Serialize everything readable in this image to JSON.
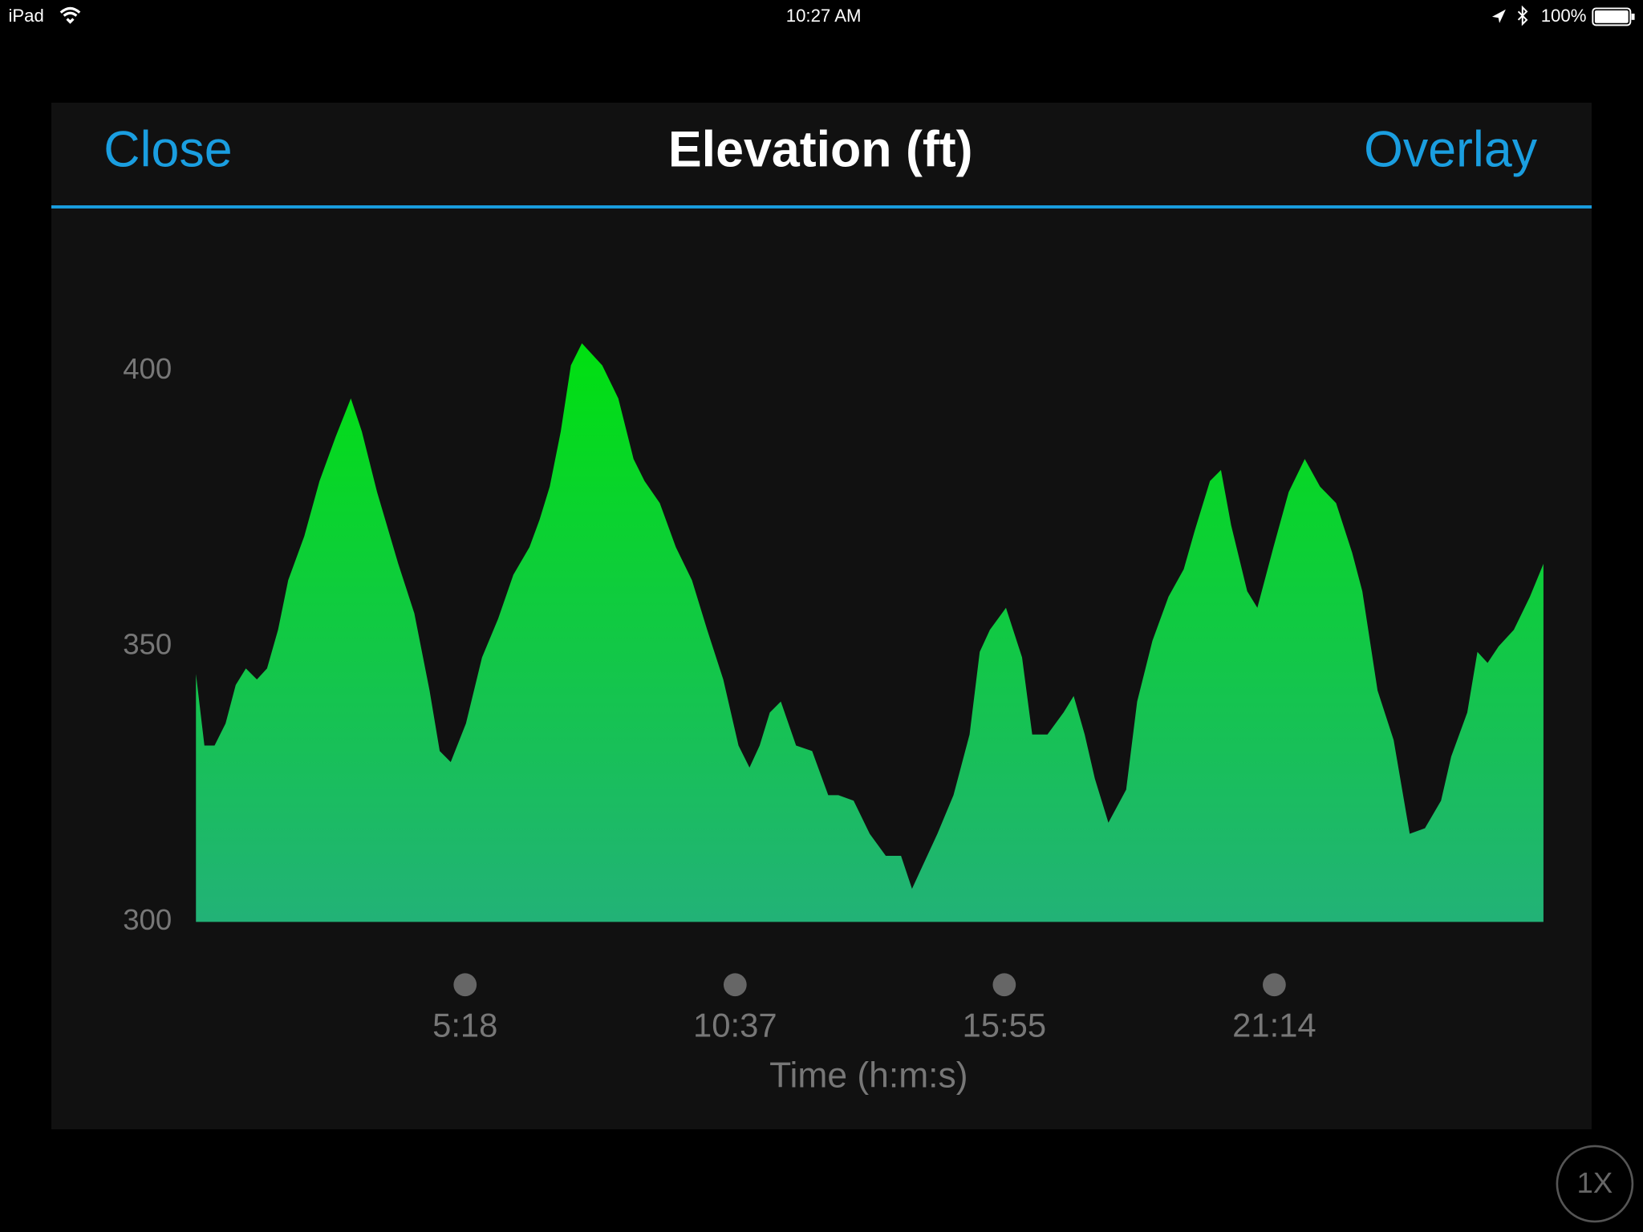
{
  "status_bar": {
    "device": "iPad",
    "time": "10:27 AM",
    "battery": "100%"
  },
  "header": {
    "close": "Close",
    "title": "Elevation (ft)",
    "overlay": "Overlay"
  },
  "chart_data": {
    "type": "area",
    "x_label": "Time (h:m:s)",
    "color": "#00e010",
    "x": [
      0,
      10,
      22,
      35,
      47,
      59,
      72,
      84,
      97,
      109,
      128,
      146,
      165,
      183,
      196,
      214,
      239,
      258,
      276,
      288,
      301,
      319,
      338,
      357,
      375,
      394,
      406,
      418,
      431,
      443,
      456,
      468,
      480,
      499,
      517,
      530,
      548,
      567,
      586,
      604,
      623,
      641,
      654,
      666,
      678,
      691,
      709,
      728,
      747,
      759,
      777,
      796,
      815,
      833,
      846,
      858,
      876,
      895,
      914,
      926,
      938,
      957,
      976,
      988,
      1006,
      1025,
      1037,
      1050,
      1062,
      1078,
      1099,
      1112,
      1130,
      1149,
      1167,
      1180,
      1198,
      1211,
      1223,
      1242,
      1254,
      1273,
      1291,
      1310,
      1328,
      1347,
      1366,
      1378,
      1396,
      1415,
      1434,
      1452,
      1471,
      1483,
      1502,
      1514,
      1526,
      1539,
      1557,
      1576,
      1592
    ],
    "values": [
      345,
      332,
      332,
      336,
      343,
      346,
      344,
      346,
      353,
      362,
      370,
      380,
      388,
      395,
      389,
      378,
      365,
      356,
      342,
      331,
      329,
      336,
      348,
      355,
      363,
      368,
      373,
      379,
      389,
      401,
      405,
      403,
      401,
      395,
      384,
      380,
      376,
      368,
      362,
      353,
      344,
      332,
      328,
      332,
      338,
      340,
      332,
      331,
      323,
      323,
      322,
      316,
      312,
      312,
      306,
      310,
      316,
      323,
      334,
      349,
      353,
      357,
      348,
      334,
      334,
      338,
      341,
      334,
      326,
      318,
      324,
      340,
      351,
      359,
      364,
      371,
      380,
      382,
      372,
      360,
      357,
      368,
      378,
      384,
      379,
      376,
      367,
      360,
      342,
      333,
      316,
      317,
      322,
      330,
      338,
      349,
      347,
      350,
      353,
      359,
      365
    ],
    "xlim": [
      0,
      1592
    ],
    "ylim": [
      300,
      410
    ],
    "yticks": [
      300,
      350,
      400
    ],
    "xticks": [
      {
        "value": 318,
        "label": "5:18"
      },
      {
        "value": 637,
        "label": "10:37"
      },
      {
        "value": 955,
        "label": "15:55"
      },
      {
        "value": 1274,
        "label": "21:14"
      }
    ]
  },
  "zoom_button": "1X"
}
